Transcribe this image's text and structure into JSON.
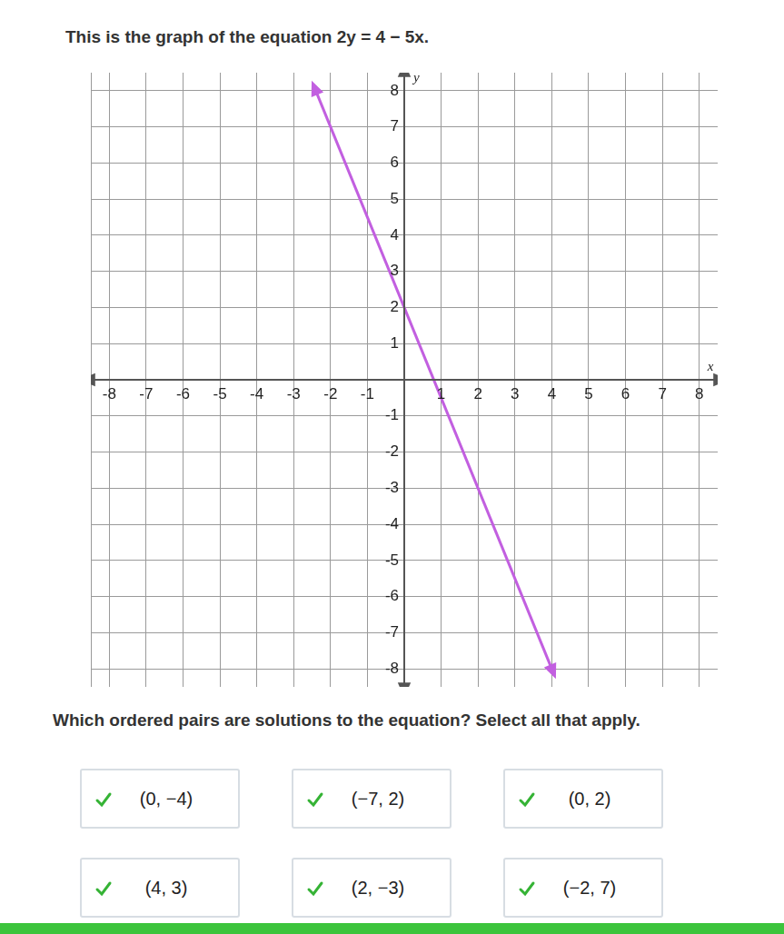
{
  "chart_data": {
    "type": "line",
    "title": "This is the graph of the equation 2y = 4 − 5x.",
    "x_label": "x",
    "y_label": "y",
    "x": [
      -2.4,
      4
    ],
    "values": [
      8,
      -8
    ],
    "color": "#c25fe0",
    "xlim": [
      -8.5,
      8.5
    ],
    "ylim": [
      -8.5,
      8.5
    ],
    "xticks": [
      -8,
      -7,
      -6,
      -5,
      -4,
      -3,
      -2,
      -1,
      1,
      2,
      3,
      4,
      5,
      6,
      7,
      8
    ],
    "yticks": [
      -8,
      -7,
      -6,
      -5,
      -4,
      -3,
      -2,
      -1,
      1,
      2,
      3,
      4,
      5,
      6,
      7,
      8
    ],
    "grid": true
  },
  "question": "Which ordered pairs are solutions to the equation? Select all that apply.",
  "choices": [
    "(0, −4)",
    "(−7, 2)",
    "(0, 2)",
    "(4, 3)",
    "(2, −3)",
    "(−2, 7)"
  ]
}
